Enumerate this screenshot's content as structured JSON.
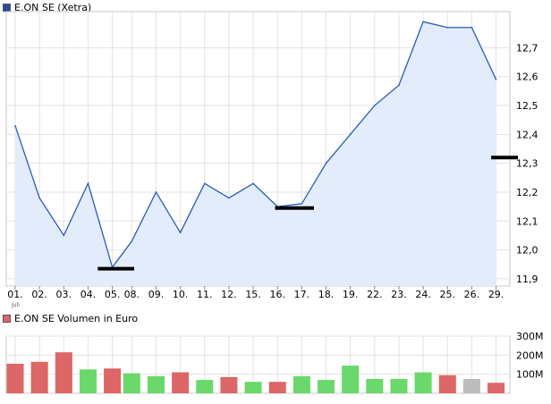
{
  "price_panel": {
    "legend": "E.ON SE (Xetra)",
    "legend_color": "#2a4b9b"
  },
  "volume_panel": {
    "legend": "E.ON SE Volumen in Euro",
    "legend_color": "#dd6666"
  },
  "month_label": "Juli",
  "colors": {
    "price_line": "#2a5db0",
    "price_fill": "#e3ecfb",
    "grid": "#e2e2e2",
    "frame": "#c8c8c8",
    "volume_up": "#6bd86b",
    "volume_down": "#dd6666",
    "volume_neutral": "#bdbdbd",
    "marker": "#000000"
  },
  "chart_data": [
    {
      "type": "area",
      "title": "E.ON SE (Xetra)",
      "categories": [
        "01.",
        "02.",
        "03.",
        "04.",
        "05.",
        "08.",
        "09.",
        "10.",
        "11.",
        "12.",
        "15.",
        "16.",
        "17.",
        "18.",
        "19.",
        "22.",
        "23.",
        "24.",
        "25.",
        "26.",
        "29."
      ],
      "x_positions": [
        0,
        1,
        2,
        3,
        4,
        4.8,
        5.8,
        6.8,
        7.8,
        8.8,
        9.8,
        10.8,
        11.8,
        12.8,
        13.8,
        14.8,
        15.8,
        16.8,
        17.8,
        18.8,
        19.8
      ],
      "values": [
        12.43,
        12.18,
        12.05,
        12.23,
        11.94,
        12.03,
        12.2,
        12.06,
        12.23,
        12.18,
        12.23,
        12.15,
        12.16,
        12.3,
        12.4,
        12.5,
        12.57,
        12.79,
        12.77,
        12.77,
        12.59
      ],
      "ylim": [
        11.875,
        12.825
      ],
      "yticks": [
        11.9,
        12.0,
        12.1,
        12.2,
        12.3,
        12.4,
        12.5,
        12.6,
        12.7
      ],
      "ytick_labels": [
        "11,9",
        "12,0",
        "12,1",
        "12,2",
        "12,3",
        "12,4",
        "12,5",
        "12,6",
        "12,7"
      ],
      "reference_markers": [
        {
          "x_start": 3.4,
          "x_end": 4.9,
          "value": 11.935
        },
        {
          "x_start": 10.7,
          "x_end": 12.3,
          "value": 12.145
        },
        {
          "x_start": 19.6,
          "x_end": 20.7,
          "value": 12.32
        }
      ],
      "grid": true
    },
    {
      "type": "bar",
      "title": "E.ON SE Volumen in Euro",
      "categories": [
        "01.",
        "02.",
        "03.",
        "04.",
        "05.",
        "08.",
        "09.",
        "10.",
        "11.",
        "12.",
        "15.",
        "16.",
        "17.",
        "18.",
        "19.",
        "22.",
        "23.",
        "24.",
        "25.",
        "26.",
        "29."
      ],
      "values": [
        155,
        165,
        215,
        125,
        130,
        105,
        90,
        110,
        70,
        85,
        60,
        60,
        90,
        70,
        145,
        75,
        75,
        110,
        95,
        75,
        55
      ],
      "direction": [
        "down",
        "down",
        "down",
        "up",
        "down",
        "up",
        "up",
        "down",
        "up",
        "down",
        "up",
        "down",
        "up",
        "up",
        "up",
        "up",
        "up",
        "up",
        "down",
        "neutral",
        "down"
      ],
      "ylim": [
        0,
        300
      ],
      "yticks": [
        100,
        200,
        300
      ],
      "ytick_labels": [
        "100M",
        "200M",
        "300M"
      ],
      "grid": true
    }
  ]
}
